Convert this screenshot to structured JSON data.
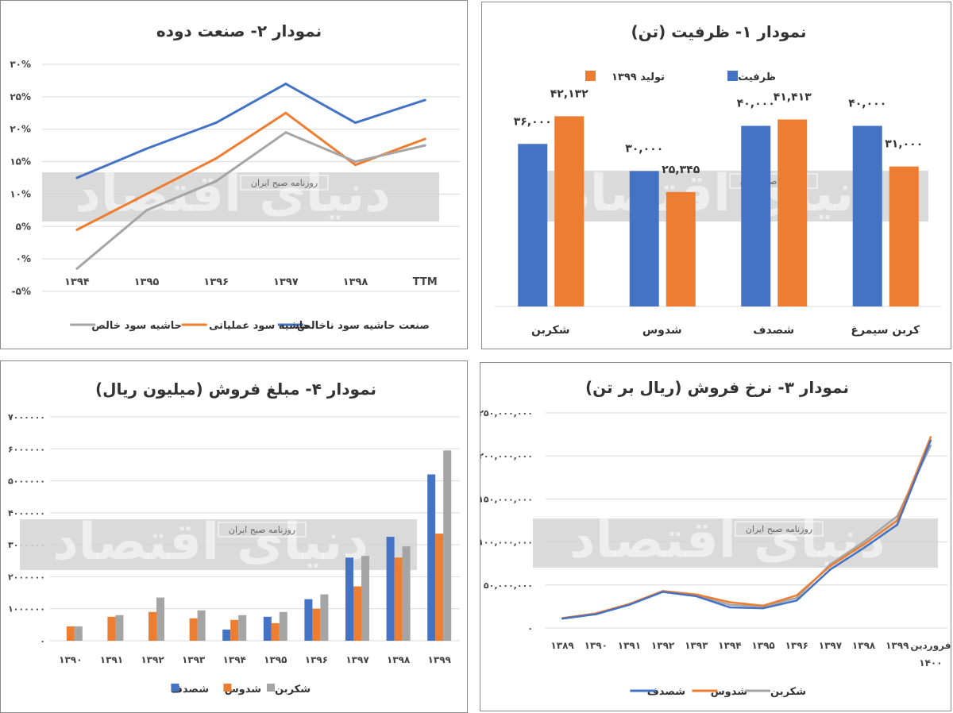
{
  "watermark": {
    "big": "دنیای اقتصاد",
    "small": "روزنامه صبح ایران"
  },
  "colors": {
    "blue": "#4472C4",
    "orange": "#ED7D31",
    "gray": "#A5A5A5",
    "grid": "#D9D9D9",
    "band": "#D4D4D4"
  },
  "chart_data": [
    {
      "id": "c2",
      "type": "line",
      "title": "نمودار ۲- صنعت دوده",
      "categories": [
        "۱۳۹۴",
        "۱۳۹۵",
        "۱۳۹۶",
        "۱۳۹۷",
        "۱۳۹۸",
        "TTM"
      ],
      "ylim": [
        -5,
        30
      ],
      "yticks": [
        -5,
        0,
        5,
        10,
        15,
        20,
        25,
        30
      ],
      "ytick_labels": [
        "-۵%",
        "۰%",
        "۵%",
        "۱۰%",
        "۱۵%",
        "۲۰%",
        "۲۵%",
        "۳۰%"
      ],
      "legend": "bottom",
      "series": [
        {
          "name": "صنعت حاشیه سود ناخالص",
          "color": "#4472C4",
          "values": [
            12.5,
            17,
            21,
            27,
            21,
            24.5
          ]
        },
        {
          "name": "حاشیه سود عملیاتی",
          "color": "#ED7D31",
          "values": [
            4.5,
            10,
            15.5,
            22.5,
            14.5,
            18.5
          ]
        },
        {
          "name": "حاشیه سود خالص",
          "color": "#A5A5A5",
          "values": [
            -1.5,
            7.5,
            12,
            19.5,
            15,
            17.5
          ]
        }
      ]
    },
    {
      "id": "c1",
      "type": "bar",
      "title": "نمودار ۱- ظرفیت (تن)",
      "categories": [
        "شکربن",
        "شدوس",
        "شصدف",
        "کربن سیمرغ"
      ],
      "ylim": [
        0,
        48000
      ],
      "legend": "top",
      "series": [
        {
          "name": "ظرفیت",
          "color": "#4472C4",
          "values": [
            36000,
            30000,
            40000,
            40000
          ],
          "labels": [
            "۳۶,۰۰۰",
            "۳۰,۰۰۰",
            "۴۰,۰۰۰",
            "۴۰,۰۰۰"
          ]
        },
        {
          "name": "تولید ۱۳۹۹",
          "color": "#ED7D31",
          "values": [
            42132,
            25345,
            41413,
            31000
          ],
          "labels": [
            "۴۲,۱۳۲",
            "۲۵,۳۴۵",
            "۴۱,۴۱۳",
            "۳۱,۰۰۰"
          ]
        }
      ]
    },
    {
      "id": "c4",
      "type": "bar",
      "title": "نمودار ۴- مبلغ فروش (میلیون ریال)",
      "categories": [
        "۱۳۹۰",
        "۱۳۹۱",
        "۱۳۹۲",
        "۱۳۹۳",
        "۱۳۹۴",
        "۱۳۹۵",
        "۱۳۹۶",
        "۱۳۹۷",
        "۱۳۹۸",
        "۱۳۹۹"
      ],
      "ylim": [
        0,
        7000000
      ],
      "yticks": [
        0,
        1000000,
        2000000,
        3000000,
        4000000,
        5000000,
        6000000,
        7000000
      ],
      "ytick_labels": [
        "۰",
        "۱۰۰۰۰۰۰",
        "۲۰۰۰۰۰۰",
        "۳۰۰۰۰۰۰",
        "۴۰۰۰۰۰۰",
        "۵۰۰۰۰۰۰",
        "۶۰۰۰۰۰۰",
        "۷۰۰۰۰۰۰"
      ],
      "legend": "bottom",
      "series": [
        {
          "name": "شصدف",
          "color": "#4472C4",
          "values": [
            0,
            0,
            0,
            0,
            350000,
            750000,
            1300000,
            2600000,
            3250000,
            5200000
          ]
        },
        {
          "name": "شدوس",
          "color": "#ED7D31",
          "values": [
            450000,
            750000,
            900000,
            700000,
            650000,
            550000,
            1000000,
            1700000,
            2600000,
            3350000
          ]
        },
        {
          "name": "شکربن",
          "color": "#A5A5A5",
          "values": [
            450000,
            800000,
            1350000,
            950000,
            800000,
            900000,
            1450000,
            2650000,
            2950000,
            5950000
          ]
        }
      ]
    },
    {
      "id": "c3",
      "type": "line",
      "title": "نمودار ۳- نرخ فروش (ریال بر تن)",
      "categories": [
        "۱۳۸۹",
        "۱۳۹۰",
        "۱۳۹۱",
        "۱۳۹۲",
        "۱۳۹۳",
        "۱۳۹۴",
        "۱۳۹۵",
        "۱۳۹۶",
        "۱۳۹۷",
        "۱۳۹۸",
        "۱۳۹۹",
        "فروردین ۱۴۰۰"
      ],
      "ylim": [
        0,
        250000000
      ],
      "yticks": [
        0,
        50000000,
        100000000,
        150000000,
        200000000,
        250000000
      ],
      "ytick_labels": [
        "۰",
        "۵۰,۰۰۰,۰۰۰",
        "۱۰۰,۰۰۰,۰۰۰",
        "۱۵۰,۰۰۰,۰۰۰",
        "۲۰۰,۰۰۰,۰۰۰",
        "۲۵۰,۰۰۰,۰۰۰"
      ],
      "legend": "bottom",
      "series": [
        {
          "name": "شصدف",
          "color": "#4472C4",
          "values": [
            11000000,
            16000000,
            27000000,
            42000000,
            37000000,
            24000000,
            23000000,
            32000000,
            68000000,
            93000000,
            120000000,
            218000000
          ]
        },
        {
          "name": "شدوس",
          "color": "#ED7D31",
          "values": [
            11500000,
            17000000,
            28000000,
            43000000,
            39000000,
            30000000,
            26000000,
            38000000,
            72000000,
            97000000,
            125000000,
            222000000
          ]
        },
        {
          "name": "شکربن",
          "color": "#A5A5A5",
          "values": [
            11000000,
            16500000,
            27500000,
            42500000,
            38000000,
            27000000,
            25000000,
            35000000,
            74000000,
            100000000,
            130000000,
            212000000
          ]
        }
      ]
    }
  ]
}
